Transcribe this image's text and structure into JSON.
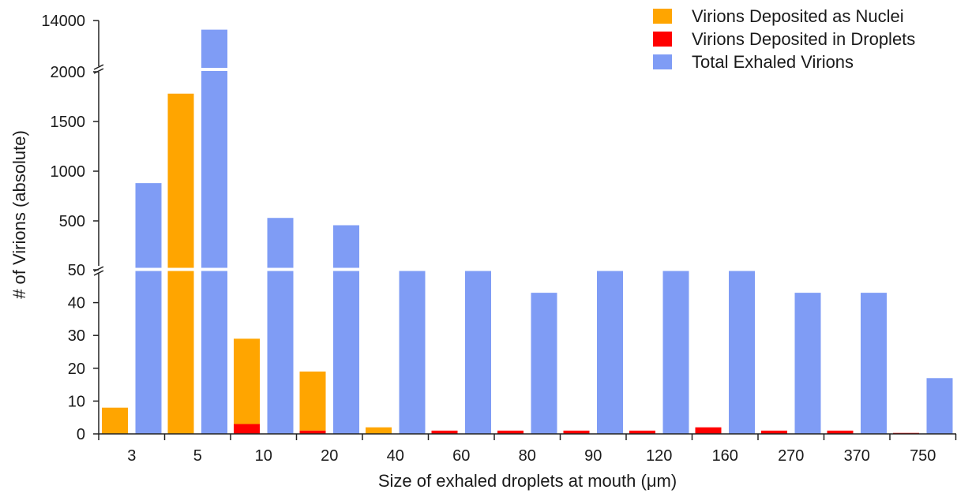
{
  "chart_data": {
    "type": "bar",
    "categories": [
      "3",
      "5",
      "10",
      "20",
      "40",
      "60",
      "80",
      "90",
      "120",
      "160",
      "270",
      "370",
      "750"
    ],
    "series": [
      {
        "name": "Virions Deposited as Nuclei",
        "color": "#FFA500",
        "values": [
          8,
          1780,
          26,
          18,
          2,
          0,
          0,
          0,
          0,
          0,
          0,
          0,
          0
        ]
      },
      {
        "name": "Virions Deposited in Droplets",
        "color": "#FF0000",
        "values": [
          0,
          0,
          3,
          1,
          0,
          1,
          1,
          1,
          1,
          2,
          1,
          1,
          0.3
        ]
      },
      {
        "name": "Total Exhaled Virions",
        "color": "#7F9CF5",
        "values": [
          880,
          13900,
          530,
          460,
          65,
          50,
          43,
          50,
          50,
          50,
          43,
          43,
          17
        ]
      }
    ],
    "xlabel": "Size of exhaled droplets at mouth (μm)",
    "ylabel": "# of Virions (absolute)",
    "y_axis_segments": [
      {
        "range": [
          0,
          50
        ],
        "ticks": [
          0,
          10,
          20,
          30,
          40,
          50
        ]
      },
      {
        "range": [
          50,
          2000
        ],
        "ticks": [
          500,
          1000,
          1500,
          2000
        ]
      },
      {
        "range": [
          13500,
          14000
        ],
        "ticks": [
          14000
        ]
      }
    ],
    "legend_position": "top-right",
    "grid": false
  }
}
